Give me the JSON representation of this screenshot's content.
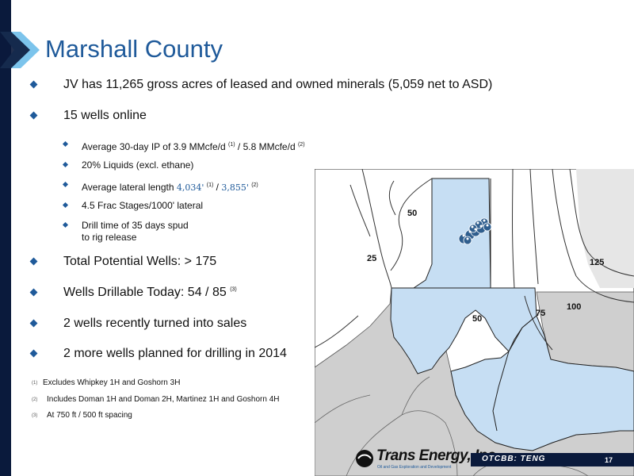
{
  "title": "Marshall County",
  "bullets": {
    "jv": "JV has 11,265 gross acres of leased and owned minerals (5,059 net to ASD)",
    "wells_online": "15 wells online",
    "sub": {
      "ip_text": "Average 30-day IP of 3.9 MMcfe/d",
      "ip_ref1": "(1)",
      "ip_sep": "/ 5.8 MMcfe/d",
      "ip_ref2": "(2)",
      "liquids": "20% Liquids (excl. ethane)",
      "lateral_text": "Average lateral length",
      "lateral_v1": "4,034'",
      "lateral_ref1": "(1)",
      "lateral_sep": "/",
      "lateral_v2": "3,855'",
      "lateral_ref2": "(2)",
      "frac": "4.5 Frac Stages/1000' lateral",
      "drill_line1": "Drill time of 35 days spud",
      "drill_line2": "to rig release"
    },
    "total_potential": "Total Potential Wells:  > 175",
    "drillable": "Wells Drillable Today:  54 / 85",
    "drillable_ref": "(3)",
    "recent_sales": "2 wells recently turned into sales",
    "planned": "2 more wells planned for drilling in 2014"
  },
  "footnotes": [
    {
      "marker": "(1)",
      "text": "Excludes Whipkey 1H and Goshorn 3H"
    },
    {
      "marker": "(2)",
      "text": "Includes Doman 1H and Doman 2H, Martinez 1H and Goshorn 4H"
    },
    {
      "marker": "(3)",
      "text": "At 750 ft / 500 ft spacing"
    }
  ],
  "map": {
    "labels": {
      "l50_top": "50",
      "l25": "25",
      "l125": "125",
      "l50_mid": "50",
      "l75": "75",
      "l100": "100"
    },
    "colors": {
      "lease": "#c6def3",
      "gray_land": "#cfcfcf",
      "well_dot": "#2f5e8e",
      "border": "#222222"
    }
  },
  "footer": {
    "company": "Trans Energy, Inc.",
    "tagline": "Oil and Gas Exploration and Development",
    "ticker": "OTCBB: TENG",
    "page": "17"
  },
  "colors": {
    "accent": "#1f5a9a",
    "navy": "#0a1a3c"
  }
}
